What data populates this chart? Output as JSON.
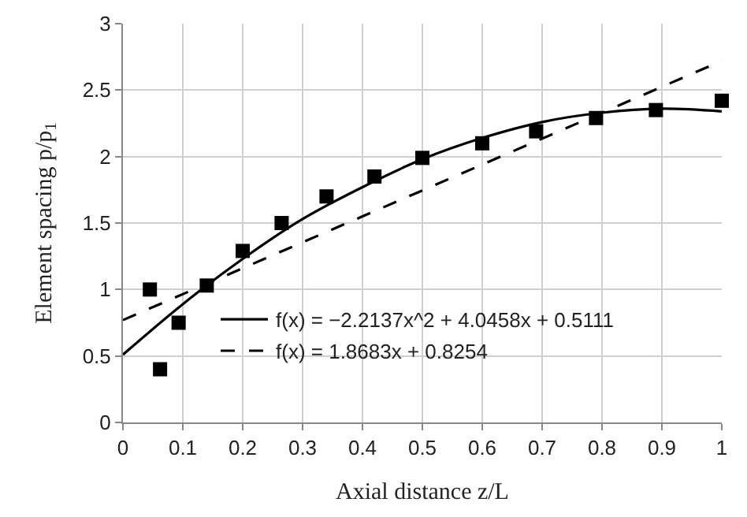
{
  "chart_data": {
    "type": "scatter",
    "xlabel": "Axial distance z/L",
    "ylabel": "Element spacing p/p$_{1}$",
    "xlim": [
      0,
      1
    ],
    "xticks": [
      0,
      0.1,
      0.2,
      0.3,
      0.4,
      0.5,
      0.6,
      0.7,
      0.8,
      0.9,
      1
    ],
    "ylim": [
      0,
      3
    ],
    "yticks": [
      0,
      0.5,
      1,
      1.5,
      2,
      2.5,
      3
    ],
    "grid": true,
    "legend": "bottom",
    "series": [
      {
        "color": "#000000",
        "marker": "square",
        "x": [
          0.045,
          0.062,
          0.093,
          0.14,
          0.2,
          0.265,
          0.34,
          0.42,
          0.5,
          0.6,
          0.69,
          0.79,
          0.89,
          1.0
        ],
        "values": [
          1.0,
          0.4,
          0.75,
          1.03,
          1.29,
          1.5,
          1.7,
          1.85,
          1.99,
          2.1,
          2.19,
          2.29,
          2.35,
          2.42
        ]
      },
      {
        "type": "line",
        "name": "f(x) = −2.2137x^2 + 4.0458x + 0.5111",
        "color": "#000000",
        "marker": "none",
        "line_style": "solid",
        "x": [
          0,
          0.1,
          0.2,
          0.3,
          0.4,
          0.5,
          0.6,
          0.7,
          0.8,
          0.9,
          1.0
        ],
        "values": [
          0.51,
          0.89,
          1.23,
          1.53,
          1.77,
          1.98,
          2.14,
          2.26,
          2.33,
          2.36,
          2.34
        ]
      },
      {
        "type": "line",
        "name": "f(x) = 1.8683x + 0.8254",
        "color": "#000000",
        "marker": "none",
        "line_style": "dashed",
        "x": [
          0,
          1
        ],
        "values": [
          0.77,
          2.72
        ]
      }
    ]
  }
}
